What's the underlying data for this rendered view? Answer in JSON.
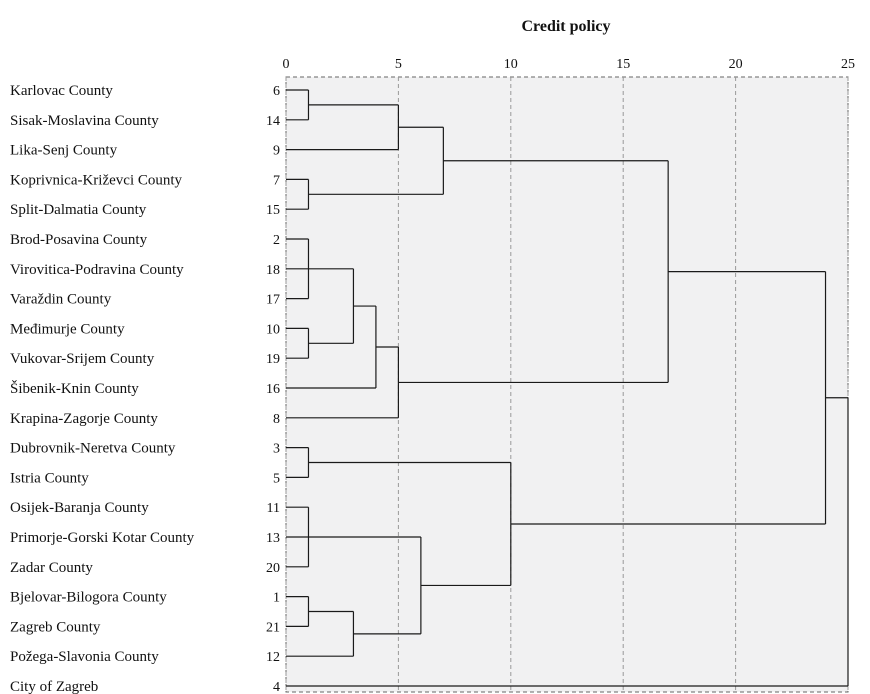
{
  "chart_data": {
    "type": "dendrogram",
    "title": "Credit policy",
    "xlim": [
      0,
      25
    ],
    "xticks": [
      "0",
      "5",
      "10",
      "15",
      "20",
      "25"
    ],
    "grid": true,
    "leaves": [
      {
        "name": "Karlovac County",
        "id": "6"
      },
      {
        "name": "Sisak-Moslavina County",
        "id": "14"
      },
      {
        "name": "Lika-Senj County",
        "id": "9"
      },
      {
        "name": "Koprivnica-Križevci County",
        "id": "7"
      },
      {
        "name": "Split-Dalmatia County",
        "id": "15"
      },
      {
        "name": "Brod-Posavina County",
        "id": "2"
      },
      {
        "name": "Virovitica-Podravina County",
        "id": "18"
      },
      {
        "name": "Varaždin County",
        "id": "17"
      },
      {
        "name": "Međimurje County",
        "id": "10"
      },
      {
        "name": "Vukovar-Srijem County",
        "id": "19"
      },
      {
        "name": "Šibenik-Knin County",
        "id": "16"
      },
      {
        "name": "Krapina-Zagorje County",
        "id": "8"
      },
      {
        "name": "Dubrovnik-Neretva County",
        "id": "3"
      },
      {
        "name": "Istria County",
        "id": "5"
      },
      {
        "name": "Osijek-Baranja County",
        "id": "11"
      },
      {
        "name": "Primorje-Gorski Kotar County",
        "id": "13"
      },
      {
        "name": "Zadar County",
        "id": "20"
      },
      {
        "name": "Bjelovar-Bilogora County",
        "id": "1"
      },
      {
        "name": "Zagreb County",
        "id": "21"
      },
      {
        "name": "Požega-Slavonia County",
        "id": "12"
      },
      {
        "name": "City of Zagreb",
        "id": "4"
      }
    ],
    "merges": [
      {
        "id": "A",
        "children": [
          "6",
          "14"
        ],
        "height": 1
      },
      {
        "id": "B",
        "children": [
          "A",
          "9"
        ],
        "height": 5
      },
      {
        "id": "C",
        "children": [
          "7",
          "15"
        ],
        "height": 1
      },
      {
        "id": "D",
        "children": [
          "B",
          "C"
        ],
        "height": 7
      },
      {
        "id": "E",
        "children": [
          "2",
          "18",
          "17"
        ],
        "height": 1
      },
      {
        "id": "F",
        "children": [
          "10",
          "19"
        ],
        "height": 1
      },
      {
        "id": "G",
        "children": [
          "E",
          "F"
        ],
        "height": 3
      },
      {
        "id": "H",
        "children": [
          "G",
          "16"
        ],
        "height": 4
      },
      {
        "id": "I",
        "children": [
          "H",
          "8"
        ],
        "height": 5
      },
      {
        "id": "J",
        "children": [
          "D",
          "I"
        ],
        "height": 17
      },
      {
        "id": "K",
        "children": [
          "3",
          "5"
        ],
        "height": 1
      },
      {
        "id": "L",
        "children": [
          "11",
          "13",
          "20"
        ],
        "height": 1
      },
      {
        "id": "M",
        "children": [
          "1",
          "21"
        ],
        "height": 1
      },
      {
        "id": "N",
        "children": [
          "M",
          "12"
        ],
        "height": 3
      },
      {
        "id": "O",
        "children": [
          "L",
          "N"
        ],
        "height": 6
      },
      {
        "id": "P",
        "children": [
          "K",
          "O"
        ],
        "height": 10
      },
      {
        "id": "Q",
        "children": [
          "J",
          "P"
        ],
        "height": 24
      },
      {
        "id": "R",
        "children": [
          "Q",
          "4"
        ],
        "height": 25
      }
    ]
  }
}
